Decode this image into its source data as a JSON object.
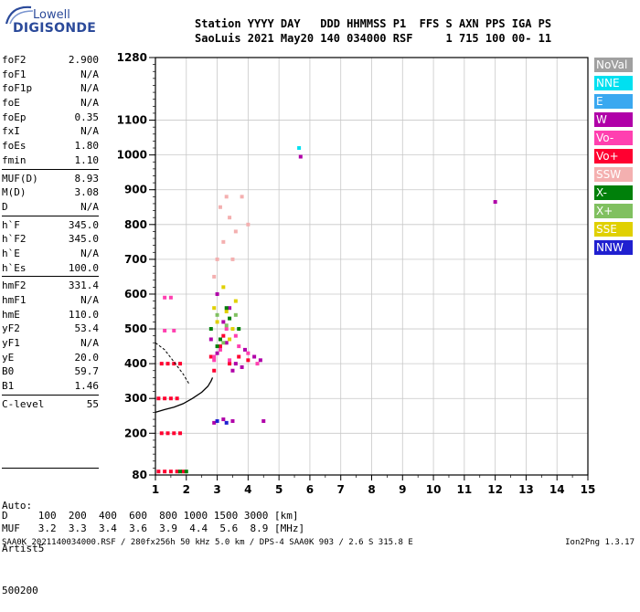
{
  "logo": {
    "line1": "Lowell",
    "line2": "DIGISONDE"
  },
  "header": {
    "line1": "Station YYYY DAY   DDD HHMMSS P1  FFS S AXN PPS IGA PS",
    "line2": "SaoLuis 2021 May20 140 034000 RSF     1 715 100 00- 11"
  },
  "params": [
    {
      "name": "foF2",
      "value": "2.900"
    },
    {
      "name": "foF1",
      "value": "N/A"
    },
    {
      "name": "foF1p",
      "value": "N/A"
    },
    {
      "name": "foE",
      "value": "N/A"
    },
    {
      "name": "foEp",
      "value": "0.35"
    },
    {
      "name": "fxI",
      "value": "N/A"
    },
    {
      "name": "foEs",
      "value": "1.80"
    },
    {
      "name": "fmin",
      "value": "1.10"
    },
    {
      "name": "MUF(D)",
      "value": "8.93",
      "sep": true
    },
    {
      "name": "M(D)",
      "value": "3.08"
    },
    {
      "name": "D",
      "value": "N/A"
    },
    {
      "name": "h`F",
      "value": "345.0",
      "sep": true
    },
    {
      "name": "h`F2",
      "value": "345.0"
    },
    {
      "name": "h`E",
      "value": "N/A"
    },
    {
      "name": "h`Es",
      "value": "100.0"
    },
    {
      "name": "hmF2",
      "value": "331.4",
      "sep": true
    },
    {
      "name": "hmF1",
      "value": "N/A"
    },
    {
      "name": "hmE",
      "value": "110.0"
    },
    {
      "name": "yF2",
      "value": "53.4"
    },
    {
      "name": "yF1",
      "value": "N/A"
    },
    {
      "name": "yE",
      "value": "20.0"
    },
    {
      "name": "B0",
      "value": "59.7"
    },
    {
      "name": "B1",
      "value": "1.46"
    },
    {
      "name": "C-level",
      "value": "55",
      "sep": true
    }
  ],
  "auto": {
    "line1": "Auto:",
    "line2": "Artist5",
    "line3": "500200"
  },
  "legend": [
    {
      "label": "NoVal",
      "color": "#a0a0a0"
    },
    {
      "label": "NNE",
      "color": "#00e0f0"
    },
    {
      "label": "E",
      "color": "#3aa8f0"
    },
    {
      "label": "W",
      "color": "#b000a8"
    },
    {
      "label": "Vo-",
      "color": "#ff40b0"
    },
    {
      "label": "Vo+",
      "color": "#ff0030"
    },
    {
      "label": "SSW",
      "color": "#f4b0b0"
    },
    {
      "label": "X-",
      "color": "#00800a"
    },
    {
      "label": "X+",
      "color": "#80c060"
    },
    {
      "label": "SSE",
      "color": "#e0d000"
    },
    {
      "label": "NNW",
      "color": "#2020d0"
    }
  ],
  "bottom": {
    "d_row": "D     100  200  400  600  800 1000 1500 3000 [km]",
    "muf_row": "MUF   3.2  3.3  3.4  3.6  3.9  4.4  5.6  8.9 [MHz]"
  },
  "footer": {
    "left": "SAA0K_2021140034000.RSF / 280fx256h 50 kHz 5.0 km / DPS-4 SAA0K 903 / 2.6 S 315.8 E",
    "right": "Ion2Png 1.3.17"
  },
  "chart_data": {
    "type": "scatter",
    "title": "",
    "xlabel": "",
    "ylabel": "",
    "x_ticks": [
      1,
      2,
      3,
      4,
      5,
      6,
      7,
      8,
      9,
      10,
      11,
      12,
      13,
      14,
      15
    ],
    "y_ticks": [
      80,
      200,
      300,
      400,
      500,
      600,
      700,
      800,
      900,
      1000,
      1100,
      1280
    ],
    "xlim": [
      1,
      15
    ],
    "ylim": [
      80,
      1280
    ],
    "grid": true,
    "legend_position": "right",
    "series": [
      {
        "name": "Vo+",
        "color": "#ff0030",
        "points": [
          [
            1.1,
            300
          ],
          [
            1.3,
            300
          ],
          [
            1.5,
            300
          ],
          [
            1.7,
            300
          ],
          [
            1.2,
            400
          ],
          [
            1.4,
            400
          ],
          [
            1.6,
            400
          ],
          [
            1.8,
            400
          ],
          [
            1.2,
            200
          ],
          [
            1.4,
            200
          ],
          [
            1.6,
            200
          ],
          [
            1.8,
            200
          ],
          [
            1.1,
            90
          ],
          [
            1.3,
            90
          ],
          [
            1.5,
            90
          ],
          [
            1.7,
            90
          ],
          [
            1.9,
            90
          ],
          [
            2.8,
            420
          ],
          [
            3.1,
            450
          ],
          [
            3.4,
            400
          ],
          [
            3.7,
            420
          ],
          [
            4.0,
            410
          ],
          [
            3.2,
            480
          ],
          [
            2.9,
            380
          ]
        ]
      },
      {
        "name": "W",
        "color": "#b000a8",
        "points": [
          [
            3.0,
            430
          ],
          [
            3.3,
            460
          ],
          [
            3.6,
            400
          ],
          [
            3.9,
            440
          ],
          [
            4.2,
            420
          ],
          [
            3.5,
            380
          ],
          [
            2.8,
            470
          ],
          [
            3.2,
            520
          ],
          [
            3.8,
            390
          ],
          [
            4.4,
            410
          ],
          [
            2.9,
            230
          ],
          [
            3.2,
            240
          ],
          [
            3.5,
            235
          ],
          [
            4.5,
            235
          ],
          [
            5.7,
            995
          ],
          [
            12,
            865
          ],
          [
            3.0,
            600
          ],
          [
            3.4,
            560
          ]
        ]
      },
      {
        "name": "Vo-",
        "color": "#ff40b0",
        "points": [
          [
            3.1,
            440
          ],
          [
            3.4,
            410
          ],
          [
            3.7,
            450
          ],
          [
            4.0,
            430
          ],
          [
            3.3,
            500
          ],
          [
            2.9,
            410
          ],
          [
            3.6,
            480
          ],
          [
            4.3,
            400
          ],
          [
            1.3,
            590
          ],
          [
            1.5,
            590
          ],
          [
            1.3,
            495
          ],
          [
            1.6,
            495
          ],
          [
            2.9,
            420
          ]
        ]
      },
      {
        "name": "SSE",
        "color": "#e0d000",
        "points": [
          [
            3.0,
            520
          ],
          [
            3.3,
            550
          ],
          [
            3.5,
            500
          ],
          [
            3.2,
            620
          ],
          [
            3.6,
            580
          ],
          [
            2.9,
            560
          ],
          [
            3.4,
            470
          ]
        ]
      },
      {
        "name": "X-",
        "color": "#00800a",
        "points": [
          [
            2.8,
            500
          ],
          [
            3.1,
            470
          ],
          [
            3.4,
            530
          ],
          [
            3.7,
            500
          ],
          [
            3.0,
            450
          ],
          [
            3.3,
            560
          ],
          [
            1.8,
            90
          ],
          [
            2.0,
            90
          ]
        ]
      },
      {
        "name": "SSW",
        "color": "#f4b0b0",
        "points": [
          [
            3.0,
            700
          ],
          [
            3.2,
            750
          ],
          [
            3.4,
            820
          ],
          [
            3.6,
            780
          ],
          [
            3.1,
            850
          ],
          [
            3.5,
            700
          ],
          [
            3.8,
            880
          ],
          [
            2.9,
            650
          ],
          [
            3.3,
            880
          ],
          [
            4.0,
            800
          ]
        ]
      },
      {
        "name": "NNE",
        "color": "#00e0f0",
        "points": [
          [
            5.65,
            1020
          ]
        ]
      },
      {
        "name": "X+",
        "color": "#80c060",
        "points": [
          [
            3.0,
            540
          ],
          [
            3.3,
            510
          ],
          [
            3.6,
            540
          ],
          [
            3.2,
            460
          ]
        ]
      },
      {
        "name": "NNW",
        "color": "#2020d0",
        "points": [
          [
            3.0,
            235
          ],
          [
            3.3,
            230
          ]
        ]
      }
    ],
    "trace": {
      "x": [
        1.0,
        1.3,
        1.6,
        1.9,
        2.2,
        2.5,
        2.7,
        2.8,
        2.85
      ],
      "y": [
        260,
        268,
        275,
        285,
        300,
        318,
        335,
        350,
        360
      ]
    },
    "dashed_trace": {
      "x": [
        1.0,
        1.3,
        1.6,
        1.9,
        2.1
      ],
      "y": [
        460,
        440,
        405,
        370,
        340
      ]
    }
  }
}
